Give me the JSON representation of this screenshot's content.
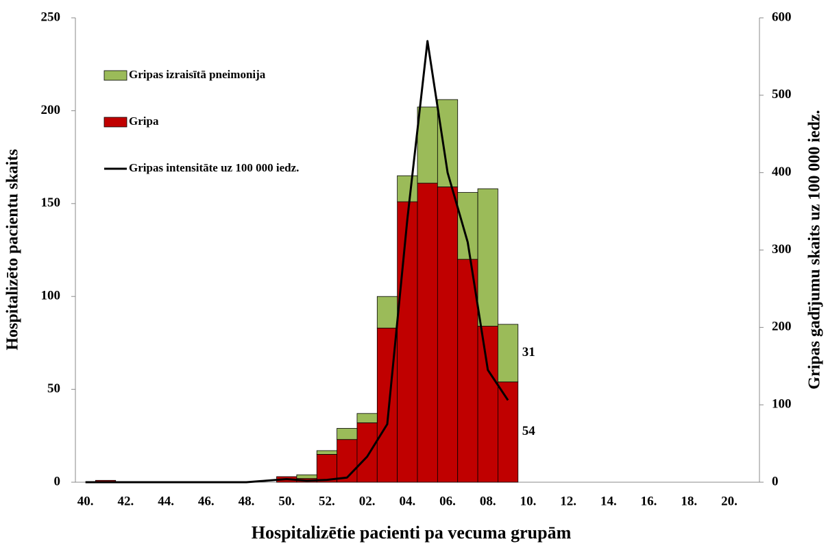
{
  "chart_data": {
    "type": "bar",
    "stacked": true,
    "xlabel": "Hospitalizētie pacienti pa vecuma grupām",
    "ylabel": "Hospitalizēto pacientu skaits",
    "y2label": "Gripas gadījumu skaits uz 100 000 iedz.",
    "categories": [
      "40.",
      null,
      "42.",
      null,
      "44.",
      null,
      "46.",
      null,
      "48.",
      null,
      "50.",
      null,
      "52.",
      null,
      "02.",
      null,
      "04.",
      null,
      "06.",
      null,
      "08.",
      null,
      "10.",
      null,
      "12.",
      null,
      "14.",
      null,
      "16.",
      null,
      "18.",
      null,
      "20.",
      null
    ],
    "series": [
      {
        "name": "Gripa",
        "type": "bar",
        "color": "#c00000",
        "values": [
          0,
          1,
          0,
          0,
          0,
          0,
          0,
          0,
          0,
          0,
          3,
          2,
          15,
          23,
          32,
          83,
          151,
          161,
          159,
          120,
          84,
          54,
          null,
          null,
          null,
          null,
          null,
          null,
          null,
          null,
          null,
          null,
          null,
          null
        ]
      },
      {
        "name": "Gripas izraisītā pneimonija",
        "type": "bar",
        "color": "#9bbb59",
        "values": [
          0,
          0,
          0,
          0,
          0,
          0,
          0,
          0,
          0,
          0,
          0,
          2,
          2,
          6,
          5,
          17,
          14,
          41,
          47,
          36,
          74,
          31,
          null,
          null,
          null,
          null,
          null,
          null,
          null,
          null,
          null,
          null,
          null,
          null
        ]
      },
      {
        "name": "Gripas intensitāte uz 100 000 iedz.",
        "type": "line",
        "axis": "y2",
        "color": "#000000",
        "values": [
          0,
          0,
          0,
          0,
          0,
          0,
          0,
          0,
          0,
          2,
          4,
          2,
          3,
          6,
          33,
          75,
          340,
          570,
          400,
          310,
          145,
          106,
          null,
          null,
          null,
          null,
          null,
          null,
          null,
          null,
          null,
          null,
          null,
          null
        ]
      }
    ],
    "ylim": [
      0,
      250
    ],
    "yticks": [
      0,
      50,
      100,
      150,
      200,
      250
    ],
    "y2lim": [
      0,
      600
    ],
    "y2ticks": [
      0,
      100,
      200,
      300,
      400,
      500,
      600
    ],
    "legend": "upper left",
    "grid": false
  }
}
